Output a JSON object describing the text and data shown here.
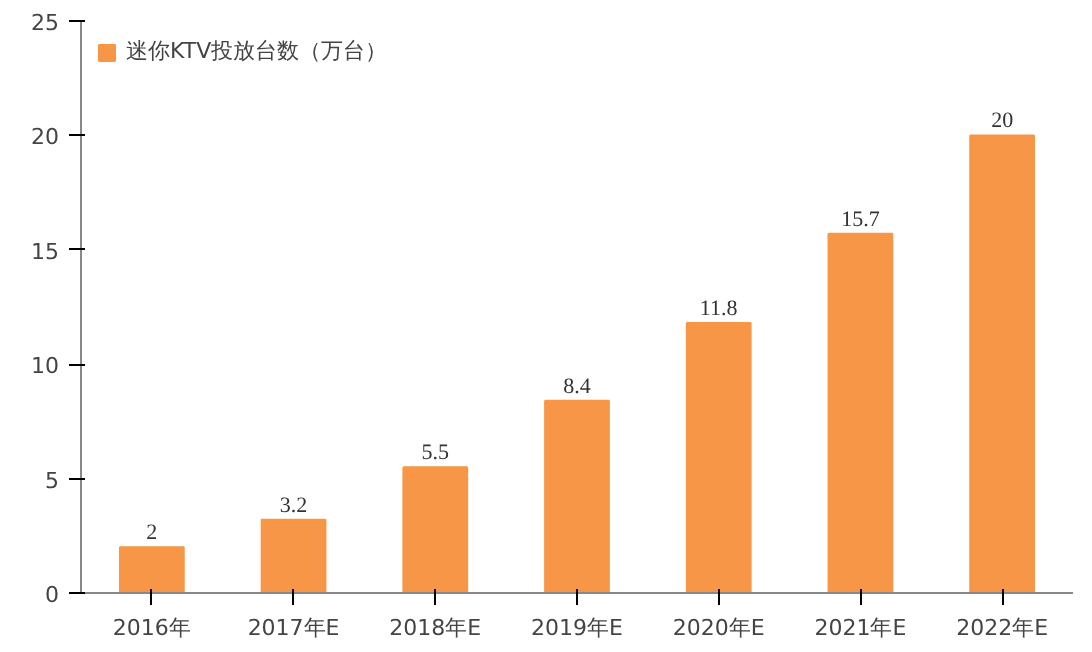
{
  "chart_data": {
    "type": "bar",
    "categories": [
      "2016年",
      "2017年E",
      "2018年E",
      "2019年E",
      "2020年E",
      "2021年E",
      "2022年E"
    ],
    "series": [
      {
        "name": "迷你KTV投放台数（万台）",
        "color": "#f79646",
        "values": [
          2,
          3.2,
          5.5,
          8.4,
          11.8,
          15.7,
          20
        ]
      }
    ],
    "ylim": [
      0,
      25
    ],
    "yticks": [
      0,
      5,
      10,
      15,
      20,
      25
    ],
    "grid": false,
    "legend": "top left",
    "data_labels": true
  }
}
